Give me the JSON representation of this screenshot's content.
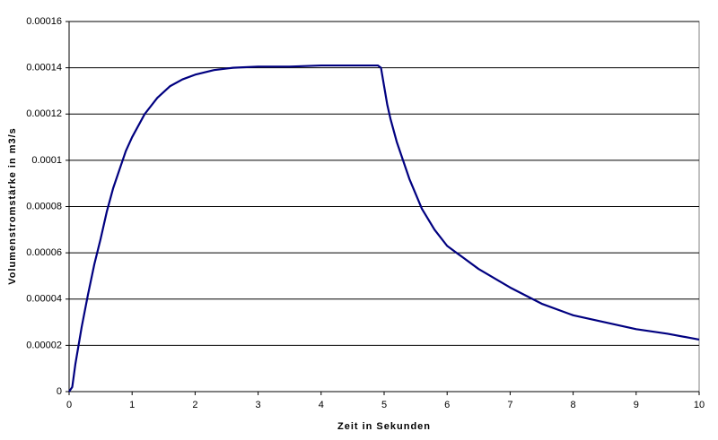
{
  "chart_data": {
    "type": "line",
    "x_label": "Zeit  in  Sekunden",
    "y_label": "Volumenstromstärke  in  m3/s",
    "x": [
      0,
      0.05,
      0.1,
      0.2,
      0.3,
      0.4,
      0.5,
      0.6,
      0.7,
      0.8,
      0.9,
      1,
      1.2,
      1.4,
      1.6,
      1.8,
      2,
      2.3,
      2.6,
      3,
      3.5,
      4,
      4.5,
      4.9,
      4.95,
      5,
      5.05,
      5.1,
      5.2,
      5.3,
      5.4,
      5.6,
      5.8,
      6,
      6.25,
      6.5,
      7,
      7.5,
      8,
      8.5,
      9,
      9.5,
      10
    ],
    "series": [
      {
        "name": "Volumenstrom",
        "color": "#000080",
        "values": [
          0,
          2e-06,
          1.2e-05,
          2.8e-05,
          4.2e-05,
          5.5e-05,
          6.6e-05,
          7.8e-05,
          8.8e-05,
          9.6e-05,
          0.000104,
          0.00011,
          0.00012,
          0.000127,
          0.000132,
          0.000135,
          0.000137,
          0.000139,
          0.00014,
          0.0001405,
          0.0001405,
          0.000141,
          0.000141,
          0.000141,
          0.00014,
          0.000132,
          0.000124,
          0.000118,
          0.000108,
          0.0001,
          9.2e-05,
          7.9e-05,
          7e-05,
          6.3e-05,
          5.8e-05,
          5.3e-05,
          4.5e-05,
          3.8e-05,
          3.3e-05,
          3e-05,
          2.7e-05,
          2.5e-05,
          2.25e-05
        ]
      }
    ],
    "xlim": [
      0,
      10
    ],
    "xticks": [
      0,
      1,
      2,
      3,
      4,
      5,
      6,
      7,
      8,
      9,
      10
    ],
    "ylim": [
      0,
      0.00016
    ],
    "yticks": [
      0,
      2e-05,
      4e-05,
      6e-05,
      8e-05,
      0.0001,
      0.00012,
      0.00014,
      0.00016
    ],
    "grid": true
  }
}
